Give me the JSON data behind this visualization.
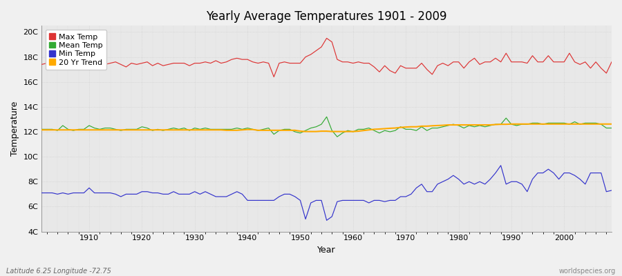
{
  "title": "Yearly Average Temperatures 1901 - 2009",
  "xlabel": "Year",
  "ylabel": "Temperature",
  "footer_left": "Latitude 6.25 Longitude -72.75",
  "footer_right": "worldspecies.org",
  "years": [
    1901,
    1902,
    1903,
    1904,
    1905,
    1906,
    1907,
    1908,
    1909,
    1910,
    1911,
    1912,
    1913,
    1914,
    1915,
    1916,
    1917,
    1918,
    1919,
    1920,
    1921,
    1922,
    1923,
    1924,
    1925,
    1926,
    1927,
    1928,
    1929,
    1930,
    1931,
    1932,
    1933,
    1934,
    1935,
    1936,
    1937,
    1938,
    1939,
    1940,
    1941,
    1942,
    1943,
    1944,
    1945,
    1946,
    1947,
    1948,
    1949,
    1950,
    1951,
    1952,
    1953,
    1954,
    1955,
    1956,
    1957,
    1958,
    1959,
    1960,
    1961,
    1962,
    1963,
    1964,
    1965,
    1966,
    1967,
    1968,
    1969,
    1970,
    1971,
    1972,
    1973,
    1974,
    1975,
    1976,
    1977,
    1978,
    1979,
    1980,
    1981,
    1982,
    1983,
    1984,
    1985,
    1986,
    1987,
    1988,
    1989,
    1990,
    1991,
    1992,
    1993,
    1994,
    1995,
    1996,
    1997,
    1998,
    1999,
    2000,
    2001,
    2002,
    2003,
    2004,
    2005,
    2006,
    2007,
    2008,
    2009
  ],
  "max_temp": [
    17.4,
    17.5,
    17.2,
    17.0,
    17.5,
    17.3,
    17.2,
    17.4,
    17.2,
    18.0,
    17.5,
    17.5,
    17.4,
    17.5,
    17.6,
    17.4,
    17.2,
    17.5,
    17.4,
    17.5,
    17.6,
    17.3,
    17.5,
    17.3,
    17.4,
    17.5,
    17.5,
    17.5,
    17.3,
    17.5,
    17.5,
    17.6,
    17.5,
    17.7,
    17.5,
    17.6,
    17.8,
    17.9,
    17.8,
    17.8,
    17.6,
    17.5,
    17.6,
    17.5,
    16.4,
    17.5,
    17.6,
    17.5,
    17.5,
    17.5,
    18.0,
    18.2,
    18.5,
    18.8,
    19.5,
    19.2,
    17.8,
    17.6,
    17.6,
    17.5,
    17.6,
    17.5,
    17.5,
    17.2,
    16.8,
    17.3,
    16.9,
    16.7,
    17.3,
    17.1,
    17.1,
    17.1,
    17.5,
    17.0,
    16.6,
    17.3,
    17.5,
    17.3,
    17.6,
    17.6,
    17.1,
    17.6,
    17.9,
    17.4,
    17.6,
    17.6,
    17.9,
    17.6,
    18.3,
    17.6,
    17.6,
    17.6,
    17.5,
    18.1,
    17.6,
    17.6,
    18.1,
    17.6,
    17.6,
    17.6,
    18.3,
    17.6,
    17.4,
    17.6,
    17.1,
    17.6,
    17.1,
    16.7,
    17.6
  ],
  "mean_temp": [
    12.2,
    12.2,
    12.2,
    12.1,
    12.5,
    12.2,
    12.1,
    12.2,
    12.2,
    12.5,
    12.3,
    12.2,
    12.3,
    12.3,
    12.2,
    12.1,
    12.2,
    12.2,
    12.2,
    12.4,
    12.3,
    12.1,
    12.2,
    12.1,
    12.2,
    12.3,
    12.2,
    12.3,
    12.1,
    12.3,
    12.2,
    12.3,
    12.2,
    12.2,
    12.2,
    12.2,
    12.2,
    12.3,
    12.2,
    12.3,
    12.2,
    12.1,
    12.2,
    12.3,
    11.8,
    12.1,
    12.2,
    12.2,
    12.0,
    11.9,
    12.1,
    12.3,
    12.4,
    12.6,
    13.2,
    12.1,
    11.6,
    11.9,
    12.1,
    12.0,
    12.2,
    12.2,
    12.3,
    12.1,
    11.9,
    12.1,
    12.0,
    12.1,
    12.4,
    12.2,
    12.2,
    12.1,
    12.4,
    12.1,
    12.3,
    12.3,
    12.4,
    12.5,
    12.6,
    12.5,
    12.3,
    12.5,
    12.4,
    12.5,
    12.4,
    12.5,
    12.6,
    12.6,
    13.1,
    12.6,
    12.5,
    12.6,
    12.6,
    12.7,
    12.7,
    12.6,
    12.7,
    12.7,
    12.7,
    12.7,
    12.6,
    12.8,
    12.6,
    12.7,
    12.7,
    12.7,
    12.6,
    12.3,
    12.3
  ],
  "min_temp": [
    7.1,
    7.1,
    7.1,
    7.0,
    7.1,
    7.0,
    7.1,
    7.1,
    7.1,
    7.5,
    7.1,
    7.1,
    7.1,
    7.1,
    7.0,
    6.8,
    7.0,
    7.0,
    7.0,
    7.2,
    7.2,
    7.1,
    7.1,
    7.0,
    7.0,
    7.2,
    7.0,
    7.0,
    7.0,
    7.2,
    7.0,
    7.2,
    7.0,
    6.8,
    6.8,
    6.8,
    7.0,
    7.2,
    7.0,
    6.5,
    6.5,
    6.5,
    6.5,
    6.5,
    6.5,
    6.8,
    7.0,
    7.0,
    6.8,
    6.5,
    5.0,
    6.3,
    6.5,
    6.5,
    4.9,
    5.2,
    6.4,
    6.5,
    6.5,
    6.5,
    6.5,
    6.5,
    6.3,
    6.5,
    6.5,
    6.4,
    6.5,
    6.5,
    6.8,
    6.8,
    7.0,
    7.5,
    7.8,
    7.2,
    7.2,
    7.8,
    8.0,
    8.2,
    8.5,
    8.2,
    7.8,
    8.0,
    7.8,
    8.0,
    7.8,
    8.2,
    8.7,
    9.3,
    7.8,
    8.0,
    8.0,
    7.8,
    7.2,
    8.2,
    8.7,
    8.7,
    9.0,
    8.7,
    8.2,
    8.7,
    8.7,
    8.5,
    8.2,
    7.8,
    8.7,
    8.7,
    8.7,
    7.2,
    7.3
  ],
  "trend_20yr": [
    12.15,
    12.15,
    12.15,
    12.15,
    12.15,
    12.15,
    12.15,
    12.15,
    12.15,
    12.15,
    12.15,
    12.15,
    12.15,
    12.15,
    12.15,
    12.15,
    12.15,
    12.15,
    12.15,
    12.15,
    12.15,
    12.15,
    12.15,
    12.15,
    12.15,
    12.15,
    12.15,
    12.15,
    12.15,
    12.15,
    12.15,
    12.15,
    12.15,
    12.15,
    12.15,
    12.12,
    12.12,
    12.12,
    12.15,
    12.18,
    12.18,
    12.12,
    12.12,
    12.12,
    12.12,
    12.12,
    12.12,
    12.12,
    12.12,
    12.05,
    12.02,
    12.02,
    12.02,
    12.05,
    12.05,
    12.02,
    12.02,
    12.02,
    12.02,
    12.02,
    12.05,
    12.1,
    12.15,
    12.2,
    12.22,
    12.25,
    12.28,
    12.3,
    12.35,
    12.38,
    12.4,
    12.4,
    12.45,
    12.45,
    12.48,
    12.5,
    12.52,
    12.55,
    12.55,
    12.55,
    12.55,
    12.55,
    12.55,
    12.55,
    12.55,
    12.55,
    12.58,
    12.6,
    12.6,
    12.62,
    12.62,
    12.62,
    12.62,
    12.62,
    12.62,
    12.62,
    12.62,
    12.62,
    12.62,
    12.62,
    12.62,
    12.62,
    12.62,
    12.62,
    12.62,
    12.62,
    12.62,
    12.62,
    12.62
  ],
  "max_color": "#dd3333",
  "mean_color": "#33aa33",
  "min_color": "#3333cc",
  "trend_color": "#ffaa00",
  "bg_color": "#f0f0f0",
  "plot_bg": "#e8e8e8",
  "yticks": [
    4,
    6,
    8,
    10,
    12,
    14,
    16,
    18,
    20
  ],
  "ytick_labels": [
    "4C",
    "6C",
    "8C",
    "10C",
    "12C",
    "14C",
    "16C",
    "18C",
    "20C"
  ],
  "ylim": [
    4,
    20.5
  ],
  "xlim": [
    1901,
    2009
  ],
  "xticks": [
    1910,
    1920,
    1930,
    1940,
    1950,
    1960,
    1970,
    1980,
    1990,
    2000
  ]
}
